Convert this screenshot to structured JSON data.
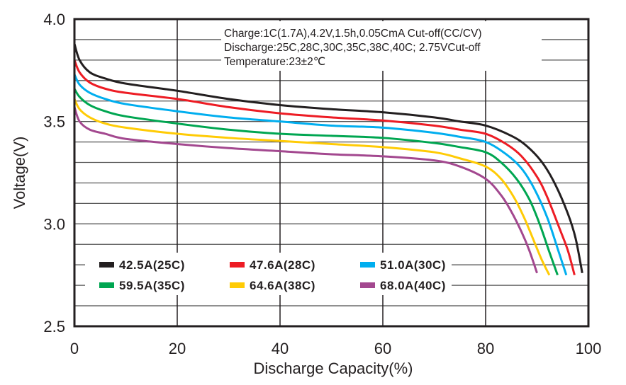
{
  "chart_data": {
    "type": "line",
    "xlabel": "Discharge Capacity(%)",
    "ylabel": "Voltage(V)",
    "xlim": [
      0,
      100
    ],
    "ylim": [
      2.5,
      4.0
    ],
    "xticks": [
      "0",
      "20",
      "40",
      "60",
      "80",
      "100"
    ],
    "yticks": [
      "4.0",
      "3.5",
      "3.0",
      "2.5"
    ],
    "grid": {
      "x_step": 20,
      "y_step": 0.1
    },
    "legend_placement": "bottom-left inside plot",
    "annotation": [
      "Charge:1C(1.7A),4.2V,1.5h,0.05CmA Cut-off(CC/CV)",
      "Discharge:25C,28C,30C,35C,38C,40C; 2.75VCut-off",
      "Temperature:23±2℃"
    ],
    "series": [
      {
        "name": "42.5A(25C)",
        "color": "#231f20",
        "points": [
          [
            0,
            3.88
          ],
          [
            1,
            3.8
          ],
          [
            3,
            3.74
          ],
          [
            6,
            3.71
          ],
          [
            10,
            3.685
          ],
          [
            20,
            3.65
          ],
          [
            30,
            3.61
          ],
          [
            40,
            3.58
          ],
          [
            50,
            3.56
          ],
          [
            60,
            3.545
          ],
          [
            70,
            3.52
          ],
          [
            75,
            3.5
          ],
          [
            80,
            3.48
          ],
          [
            85,
            3.43
          ],
          [
            88,
            3.38
          ],
          [
            91,
            3.3
          ],
          [
            93.5,
            3.195
          ],
          [
            96,
            3.05
          ],
          [
            97.5,
            2.93
          ],
          [
            98.8,
            2.76
          ]
        ]
      },
      {
        "name": "47.6A(28C)",
        "color": "#ed1c24",
        "points": [
          [
            0,
            3.8
          ],
          [
            1,
            3.74
          ],
          [
            3,
            3.69
          ],
          [
            6,
            3.66
          ],
          [
            10,
            3.64
          ],
          [
            20,
            3.61
          ],
          [
            30,
            3.57
          ],
          [
            40,
            3.54
          ],
          [
            50,
            3.52
          ],
          [
            60,
            3.505
          ],
          [
            70,
            3.48
          ],
          [
            75,
            3.46
          ],
          [
            80,
            3.44
          ],
          [
            84,
            3.39
          ],
          [
            87,
            3.33
          ],
          [
            90,
            3.23
          ],
          [
            92,
            3.13
          ],
          [
            94.5,
            2.97
          ],
          [
            96,
            2.87
          ],
          [
            97.3,
            2.75
          ]
        ]
      },
      {
        "name": "51.0A(30C)",
        "color": "#00aeef",
        "points": [
          [
            0,
            3.73
          ],
          [
            1,
            3.68
          ],
          [
            3,
            3.64
          ],
          [
            6,
            3.61
          ],
          [
            10,
            3.585
          ],
          [
            20,
            3.55
          ],
          [
            30,
            3.52
          ],
          [
            40,
            3.5
          ],
          [
            50,
            3.48
          ],
          [
            60,
            3.47
          ],
          [
            70,
            3.445
          ],
          [
            75,
            3.425
          ],
          [
            80,
            3.4
          ],
          [
            84,
            3.34
          ],
          [
            87,
            3.27
          ],
          [
            89.5,
            3.17
          ],
          [
            92,
            3.03
          ],
          [
            94,
            2.88
          ],
          [
            95.7,
            2.75
          ]
        ]
      },
      {
        "name": "59.5A(35C)",
        "color": "#00a651",
        "points": [
          [
            0,
            3.66
          ],
          [
            1,
            3.62
          ],
          [
            3,
            3.58
          ],
          [
            6,
            3.55
          ],
          [
            10,
            3.525
          ],
          [
            20,
            3.49
          ],
          [
            30,
            3.46
          ],
          [
            40,
            3.44
          ],
          [
            50,
            3.43
          ],
          [
            60,
            3.42
          ],
          [
            70,
            3.395
          ],
          [
            75,
            3.375
          ],
          [
            80,
            3.35
          ],
          [
            83,
            3.3
          ],
          [
            86,
            3.22
          ],
          [
            88.5,
            3.12
          ],
          [
            90.5,
            3.0
          ],
          [
            92.3,
            2.87
          ],
          [
            94,
            2.75
          ]
        ]
      },
      {
        "name": "64.6A(38C)",
        "color": "#ffcb05",
        "points": [
          [
            0,
            3.61
          ],
          [
            1,
            3.56
          ],
          [
            3,
            3.52
          ],
          [
            6,
            3.49
          ],
          [
            10,
            3.47
          ],
          [
            20,
            3.44
          ],
          [
            30,
            3.42
          ],
          [
            40,
            3.405
          ],
          [
            50,
            3.39
          ],
          [
            60,
            3.375
          ],
          [
            70,
            3.35
          ],
          [
            75,
            3.32
          ],
          [
            80,
            3.28
          ],
          [
            83,
            3.22
          ],
          [
            85.5,
            3.13
          ],
          [
            87.5,
            3.03
          ],
          [
            89.5,
            2.91
          ],
          [
            91,
            2.82
          ],
          [
            92.4,
            2.75
          ]
        ]
      },
      {
        "name": "68.0A(40C)",
        "color": "#a3488f",
        "points": [
          [
            0,
            3.57
          ],
          [
            1,
            3.5
          ],
          [
            3,
            3.46
          ],
          [
            6,
            3.44
          ],
          [
            10,
            3.415
          ],
          [
            20,
            3.39
          ],
          [
            30,
            3.37
          ],
          [
            40,
            3.355
          ],
          [
            50,
            3.34
          ],
          [
            60,
            3.33
          ],
          [
            70,
            3.31
          ],
          [
            75,
            3.28
          ],
          [
            80,
            3.22
          ],
          [
            83,
            3.14
          ],
          [
            85,
            3.06
          ],
          [
            87,
            2.96
          ],
          [
            88.5,
            2.87
          ],
          [
            90,
            2.76
          ]
        ]
      }
    ]
  }
}
